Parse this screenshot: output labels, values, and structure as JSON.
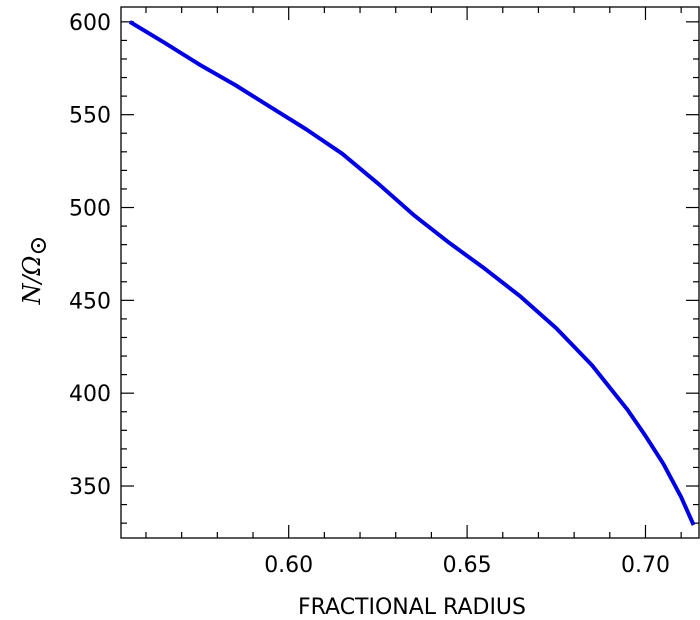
{
  "chart_data": {
    "type": "line",
    "title": "",
    "xlabel": "FRACTIONAL RADIUS",
    "ylabel": {
      "main": "N/Ω",
      "subscript": "⊙"
    },
    "xlim": [
      0.553,
      0.715
    ],
    "ylim": [
      322,
      608
    ],
    "x_major_ticks": [
      0.6,
      0.65,
      0.7
    ],
    "x_tick_labels": [
      "0.60",
      "0.65",
      "0.70"
    ],
    "x_minor_step": 0.01,
    "y_major_ticks": [
      350,
      400,
      450,
      500,
      550,
      600
    ],
    "y_tick_labels": [
      "350",
      "400",
      "450",
      "500",
      "550",
      "600"
    ],
    "y_minor_step": 10,
    "grid": false,
    "series": [
      {
        "color": "#0000e0",
        "x": [
          0.5555,
          0.565,
          0.575,
          0.585,
          0.595,
          0.605,
          0.615,
          0.625,
          0.635,
          0.645,
          0.655,
          0.665,
          0.675,
          0.685,
          0.695,
          0.7,
          0.705,
          0.71,
          0.7135
        ],
        "y": [
          600,
          589,
          577,
          566,
          554,
          542,
          529,
          513,
          496,
          481,
          467,
          452,
          435,
          415,
          391,
          377,
          362,
          344,
          329
        ]
      }
    ]
  }
}
